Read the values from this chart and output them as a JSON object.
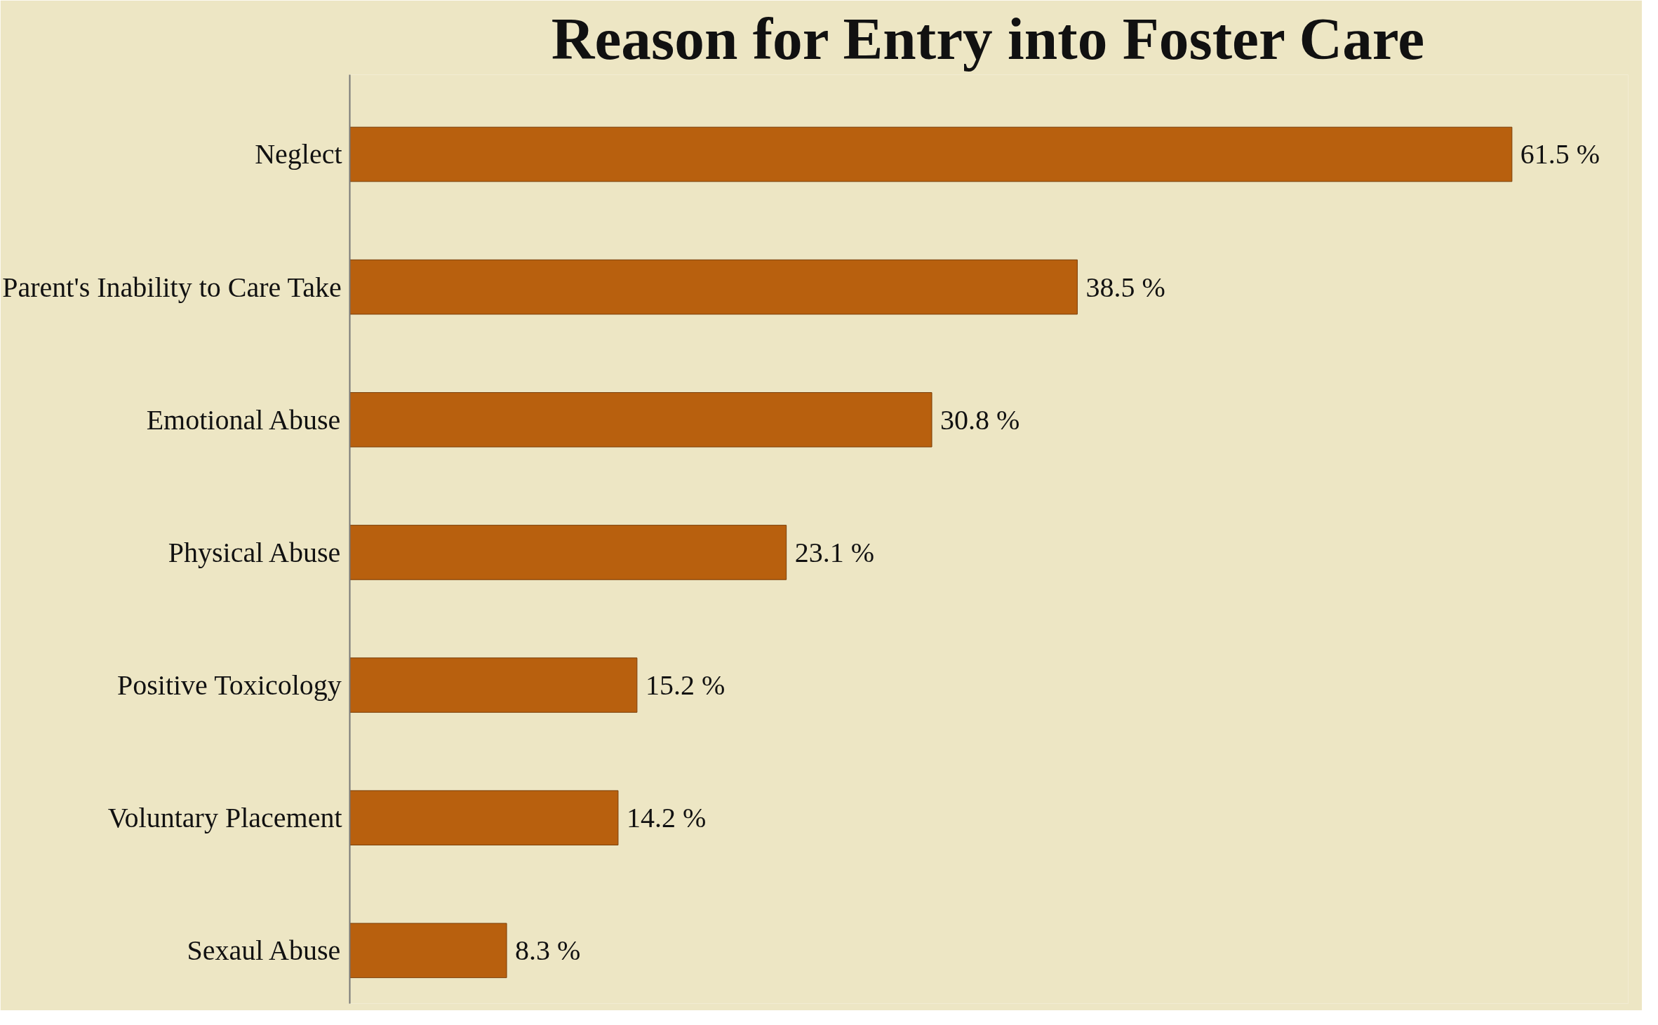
{
  "chart_data": {
    "type": "bar",
    "orientation": "horizontal",
    "title": "Reason for Entry into Foster Care",
    "categories": [
      "Neglect",
      "Parent's Inability to Care Take",
      "Emotional Abuse",
      "Physical Abuse",
      "Positive Toxicology",
      "Voluntary Placement",
      "Sexaul Abuse"
    ],
    "values": [
      61.5,
      38.5,
      30.8,
      23.1,
      15.2,
      14.2,
      8.3
    ],
    "value_labels": [
      "61.5 %",
      "38.5 %",
      "30.8 %",
      "23.1 %",
      "15.2 %",
      "14.2 %",
      "8.3 %"
    ],
    "color": "#b8600e",
    "grid": false
  }
}
